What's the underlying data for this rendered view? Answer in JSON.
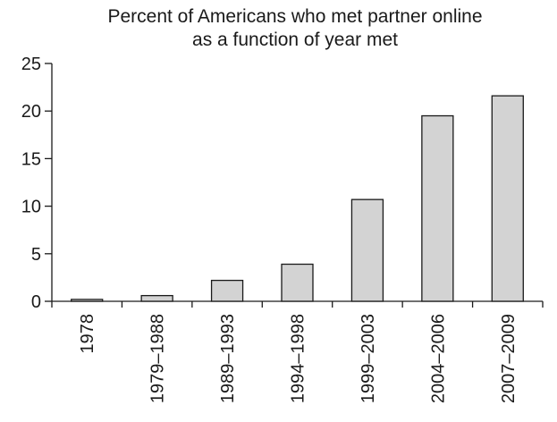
{
  "chart_data": {
    "type": "bar",
    "title": "Percent of Americans who met partner online",
    "subtitle": "as a function of year met",
    "xlabel": "",
    "ylabel": "",
    "categories": [
      "1978",
      "1979–1988",
      "1989–1993",
      "1994–1998",
      "1999–2003",
      "2004–2006",
      "2007–2009"
    ],
    "values": [
      0.2,
      0.6,
      2.2,
      3.9,
      10.7,
      19.5,
      21.6
    ],
    "ylim": [
      0,
      25
    ],
    "yticks": [
      0,
      5,
      10,
      15,
      20,
      25
    ],
    "bar_color": "#d3d3d3",
    "grid": false,
    "legend": "none"
  }
}
